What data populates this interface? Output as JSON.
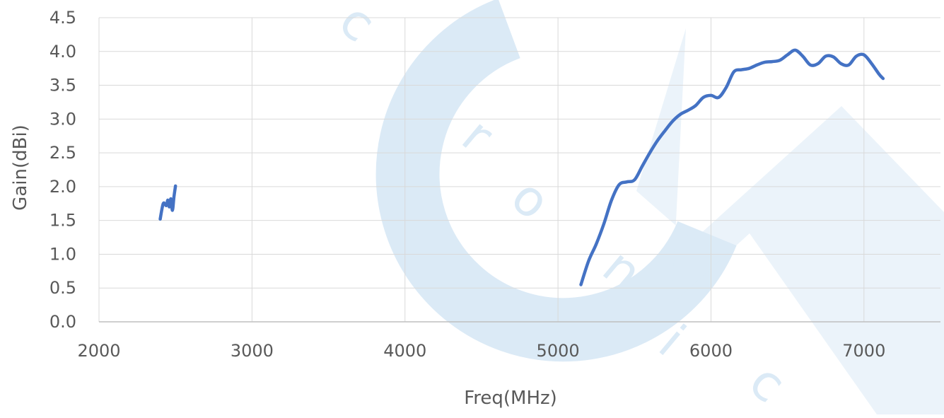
{
  "chart_data": {
    "type": "line",
    "xlabel": "Freq(MHz)",
    "ylabel": "Gain(dBi)",
    "xlim": [
      2000,
      7500
    ],
    "ylim": [
      0,
      4.5
    ],
    "x_ticks": [
      "2000",
      "3000",
      "4000",
      "5000",
      "6000",
      "7000"
    ],
    "y_ticks": [
      "0.0",
      "0.5",
      "1.0",
      "1.5",
      "2.0",
      "2.5",
      "3.0",
      "3.5",
      "4.0",
      "4.5"
    ],
    "grid": true,
    "legend": "none",
    "series": [
      {
        "color": "#4472C4",
        "x": [
          2400,
          2420,
          2440,
          2450,
          2460,
          2470,
          2480,
          2490,
          2500
        ],
        "y": [
          1.52,
          1.75,
          1.72,
          1.8,
          1.7,
          1.82,
          1.65,
          1.85,
          2.01
        ]
      },
      {
        "color": "#4472C4",
        "x": [
          5150,
          5200,
          5250,
          5300,
          5350,
          5400,
          5450,
          5500,
          5550,
          5600,
          5650,
          5700,
          5750,
          5800,
          5850,
          5900,
          5950,
          6000,
          6050,
          6100,
          6150,
          6200,
          6250,
          6300,
          6350,
          6400,
          6450,
          6500,
          6550,
          6600,
          6650,
          6700,
          6750,
          6800,
          6850,
          6900,
          6950,
          7000,
          7050,
          7100,
          7125
        ],
        "y": [
          0.55,
          0.9,
          1.15,
          1.45,
          1.8,
          2.03,
          2.07,
          2.1,
          2.3,
          2.5,
          2.68,
          2.83,
          2.97,
          3.07,
          3.13,
          3.2,
          3.32,
          3.35,
          3.32,
          3.47,
          3.7,
          3.73,
          3.75,
          3.8,
          3.84,
          3.85,
          3.87,
          3.95,
          4.02,
          3.93,
          3.8,
          3.82,
          3.93,
          3.92,
          3.82,
          3.8,
          3.93,
          3.95,
          3.82,
          3.66,
          3.6
        ]
      }
    ]
  },
  "watermark": {
    "letters": [
      "c",
      "t",
      "r",
      "o",
      "n",
      "i",
      "c"
    ],
    "color": "#dbeaf6"
  }
}
